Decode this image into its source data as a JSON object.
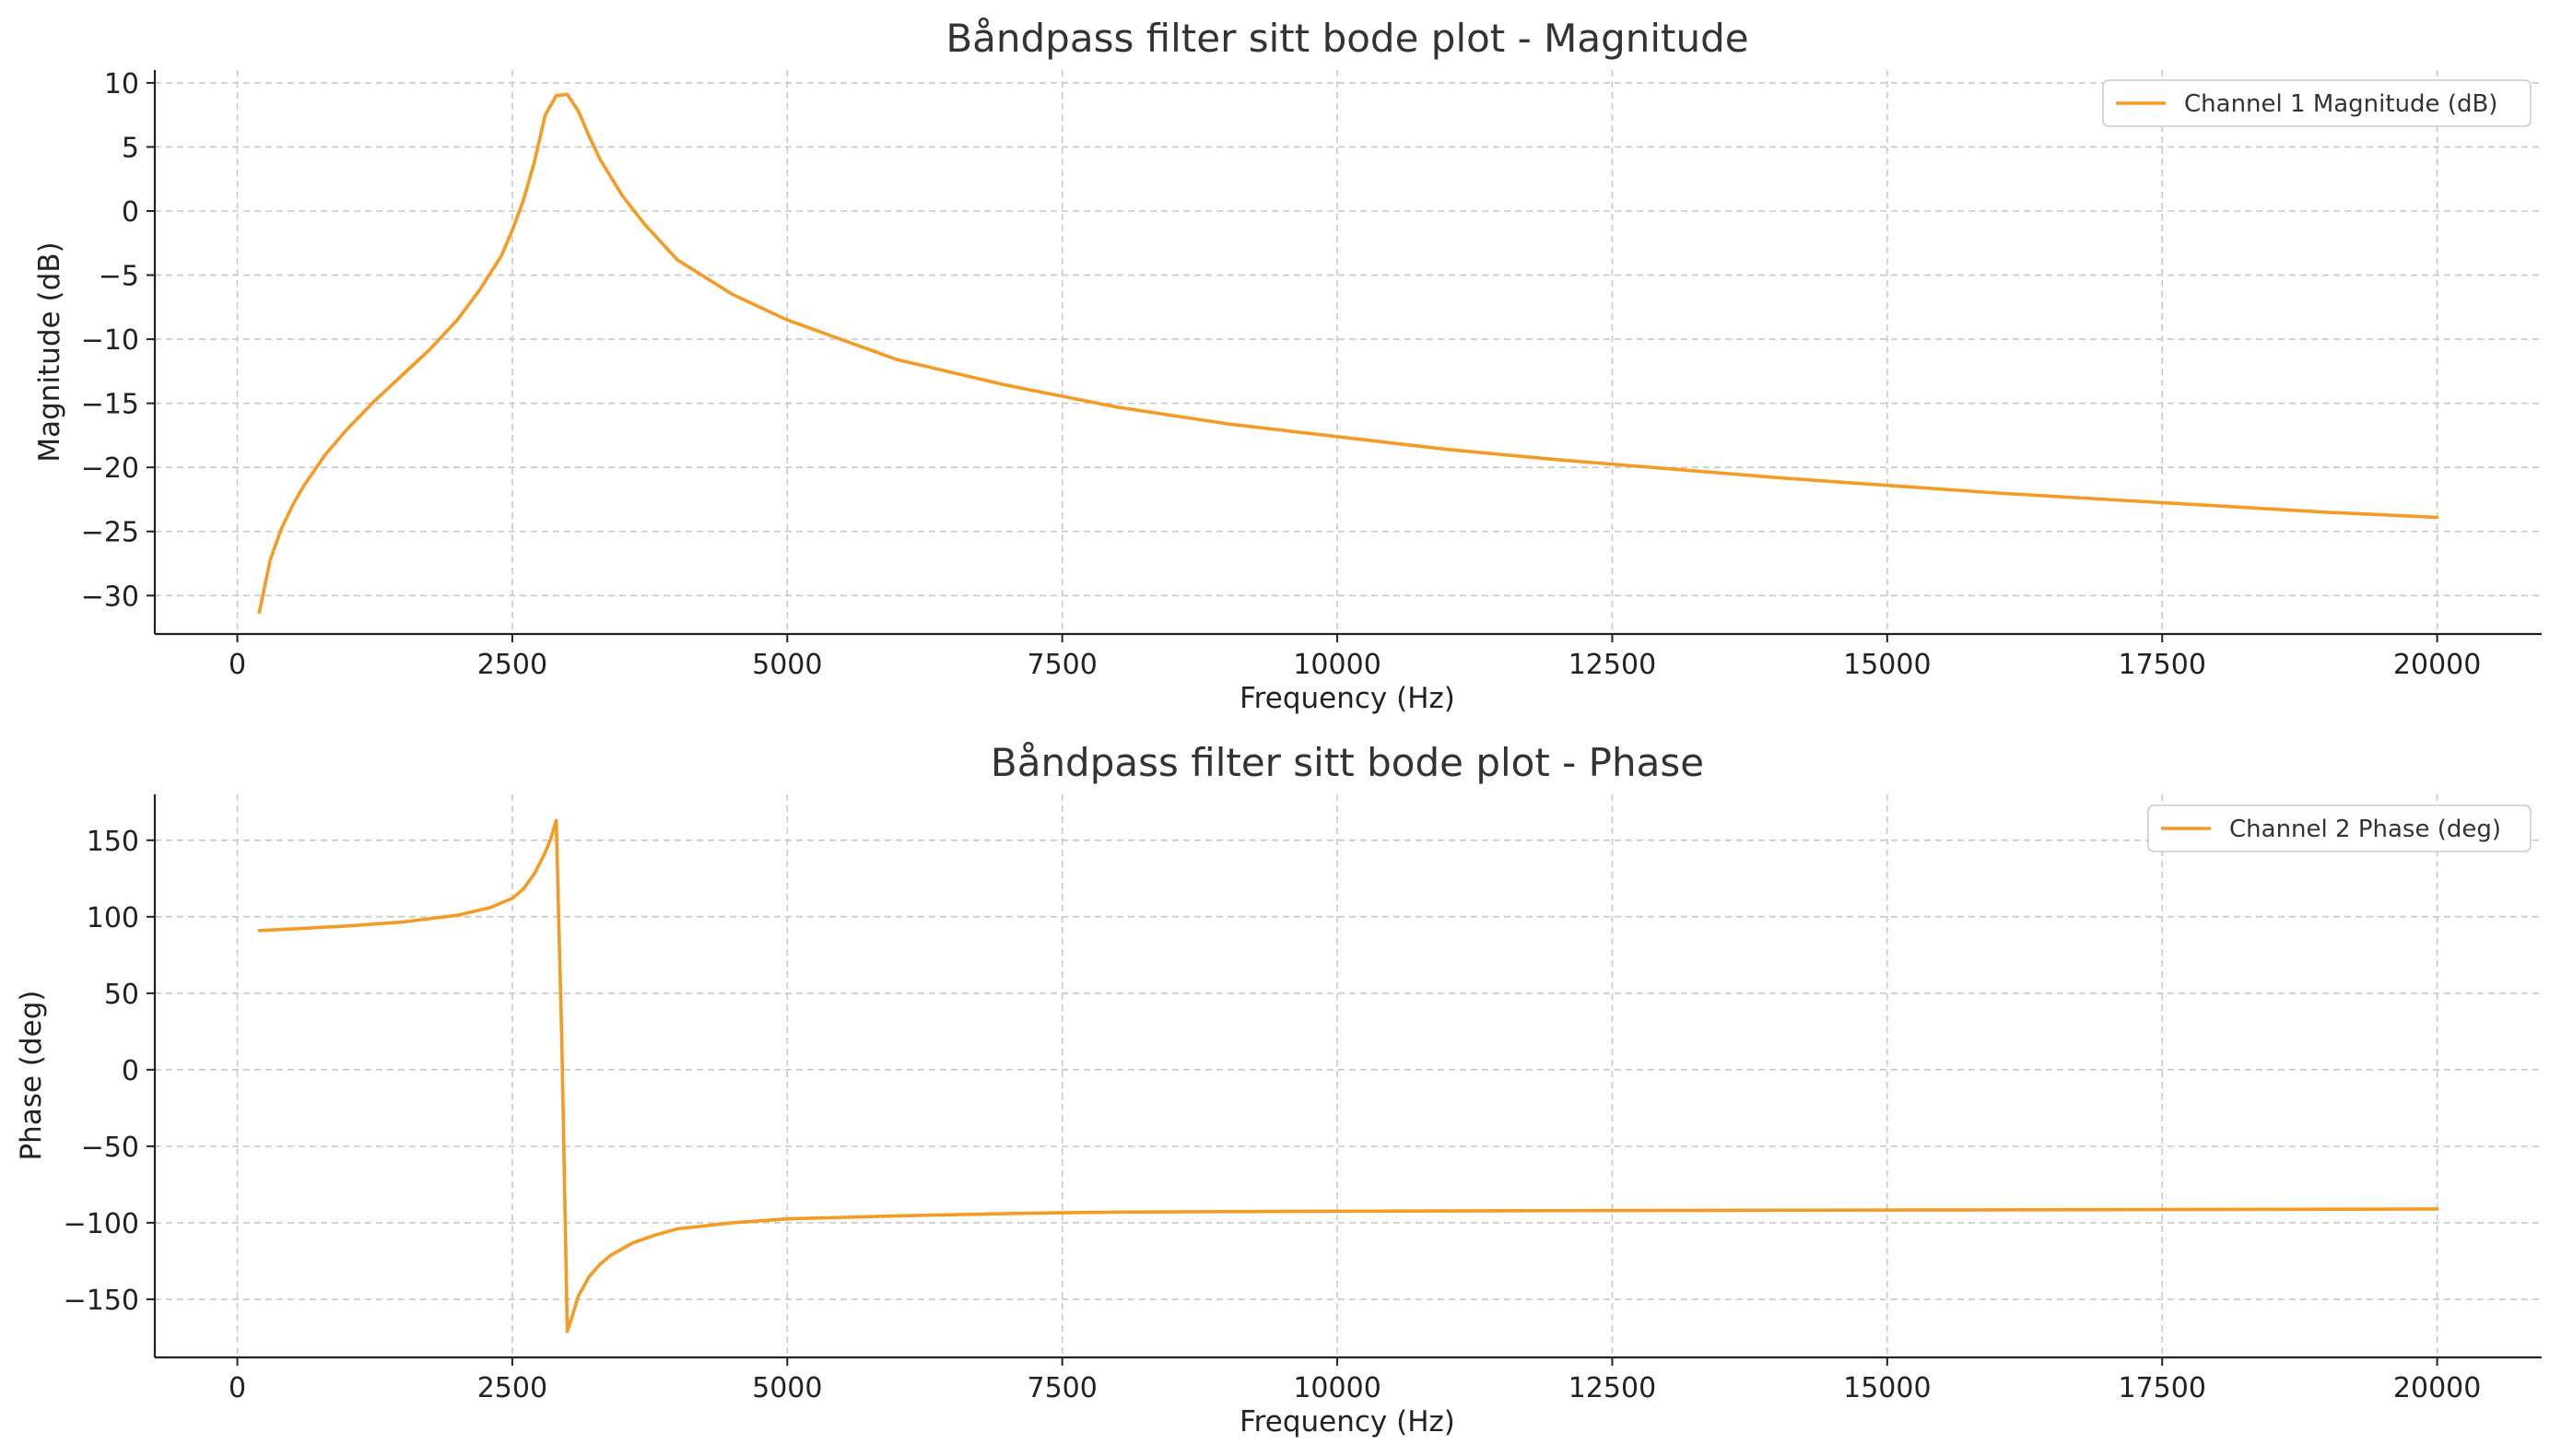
{
  "colors": {
    "series": "#f59a23"
  },
  "chart_data": [
    {
      "type": "line",
      "title": "Båndpass filter sitt bode plot - Magnitude",
      "xlabel": "Frequency (Hz)",
      "ylabel": "Magnitude (dB)",
      "xlim": [
        -750,
        20950
      ],
      "ylim": [
        -33,
        11
      ],
      "xticks": [
        0,
        2500,
        5000,
        7500,
        10000,
        12500,
        15000,
        17500,
        20000
      ],
      "xtick_labels": [
        "0",
        "2500",
        "5000",
        "7500",
        "10000",
        "12500",
        "15000",
        "17500",
        "20000"
      ],
      "yticks": [
        10,
        5,
        0,
        -5,
        -10,
        -15,
        -20,
        -25,
        -30
      ],
      "ytick_labels": [
        "10",
        "5",
        "0",
        "−5",
        "−10",
        "−15",
        "−20",
        "−25",
        "−30"
      ],
      "grid": true,
      "legend_position": "top-right",
      "series": [
        {
          "name": "Channel 1 Magnitude (dB)",
          "x": [
            200,
            300,
            400,
            500,
            600,
            800,
            1000,
            1250,
            1500,
            1750,
            2000,
            2200,
            2400,
            2500,
            2600,
            2700,
            2800,
            2900,
            3000,
            3100,
            3200,
            3300,
            3500,
            3700,
            4000,
            4500,
            5000,
            6000,
            7000,
            8000,
            9000,
            10000,
            11000,
            12000,
            13000,
            14000,
            15000,
            16000,
            17000,
            18000,
            19000,
            20000
          ],
          "y": [
            -31.3,
            -27.2,
            -24.8,
            -23.0,
            -21.5,
            -19.0,
            -17.0,
            -14.8,
            -12.8,
            -10.8,
            -8.5,
            -6.2,
            -3.5,
            -1.5,
            0.8,
            3.8,
            7.5,
            9.0,
            9.1,
            7.8,
            5.8,
            4.0,
            1.2,
            -1.0,
            -3.8,
            -6.5,
            -8.5,
            -11.6,
            -13.6,
            -15.3,
            -16.6,
            -17.6,
            -18.6,
            -19.4,
            -20.1,
            -20.8,
            -21.4,
            -22.0,
            -22.5,
            -23.0,
            -23.5,
            -23.9
          ]
        }
      ]
    },
    {
      "type": "line",
      "title": "Båndpass filter sitt bode plot - Phase",
      "xlabel": "Frequency (Hz)",
      "ylabel": "Phase (deg)",
      "xlim": [
        -750,
        20950
      ],
      "ylim": [
        -188,
        180
      ],
      "xticks": [
        0,
        2500,
        5000,
        7500,
        10000,
        12500,
        15000,
        17500,
        20000
      ],
      "xtick_labels": [
        "0",
        "2500",
        "5000",
        "7500",
        "10000",
        "12500",
        "15000",
        "17500",
        "20000"
      ],
      "yticks": [
        150,
        100,
        50,
        0,
        -50,
        -100,
        -150
      ],
      "ytick_labels": [
        "150",
        "100",
        "50",
        "0",
        "−50",
        "−100",
        "−150"
      ],
      "grid": true,
      "legend_position": "top-right",
      "series": [
        {
          "name": "Channel 2 Phase (deg)",
          "x": [
            200,
            500,
            1000,
            1500,
            2000,
            2300,
            2500,
            2600,
            2700,
            2800,
            2850,
            2900,
            2950,
            3000,
            3050,
            3100,
            3200,
            3300,
            3400,
            3600,
            3800,
            4000,
            4500,
            5000,
            6000,
            7000,
            8000,
            10000,
            12500,
            15000,
            17500,
            20000
          ],
          "y": [
            91,
            92,
            94,
            96.5,
            101,
            106,
            112,
            118,
            128,
            142,
            151,
            163,
            20,
            -171,
            -160,
            -148,
            -135,
            -127,
            -121,
            -113,
            -108,
            -104,
            -100,
            -97.5,
            -95.5,
            -94,
            -93,
            -92.5,
            -92,
            -91.7,
            -91.4,
            -91
          ]
        }
      ]
    }
  ]
}
